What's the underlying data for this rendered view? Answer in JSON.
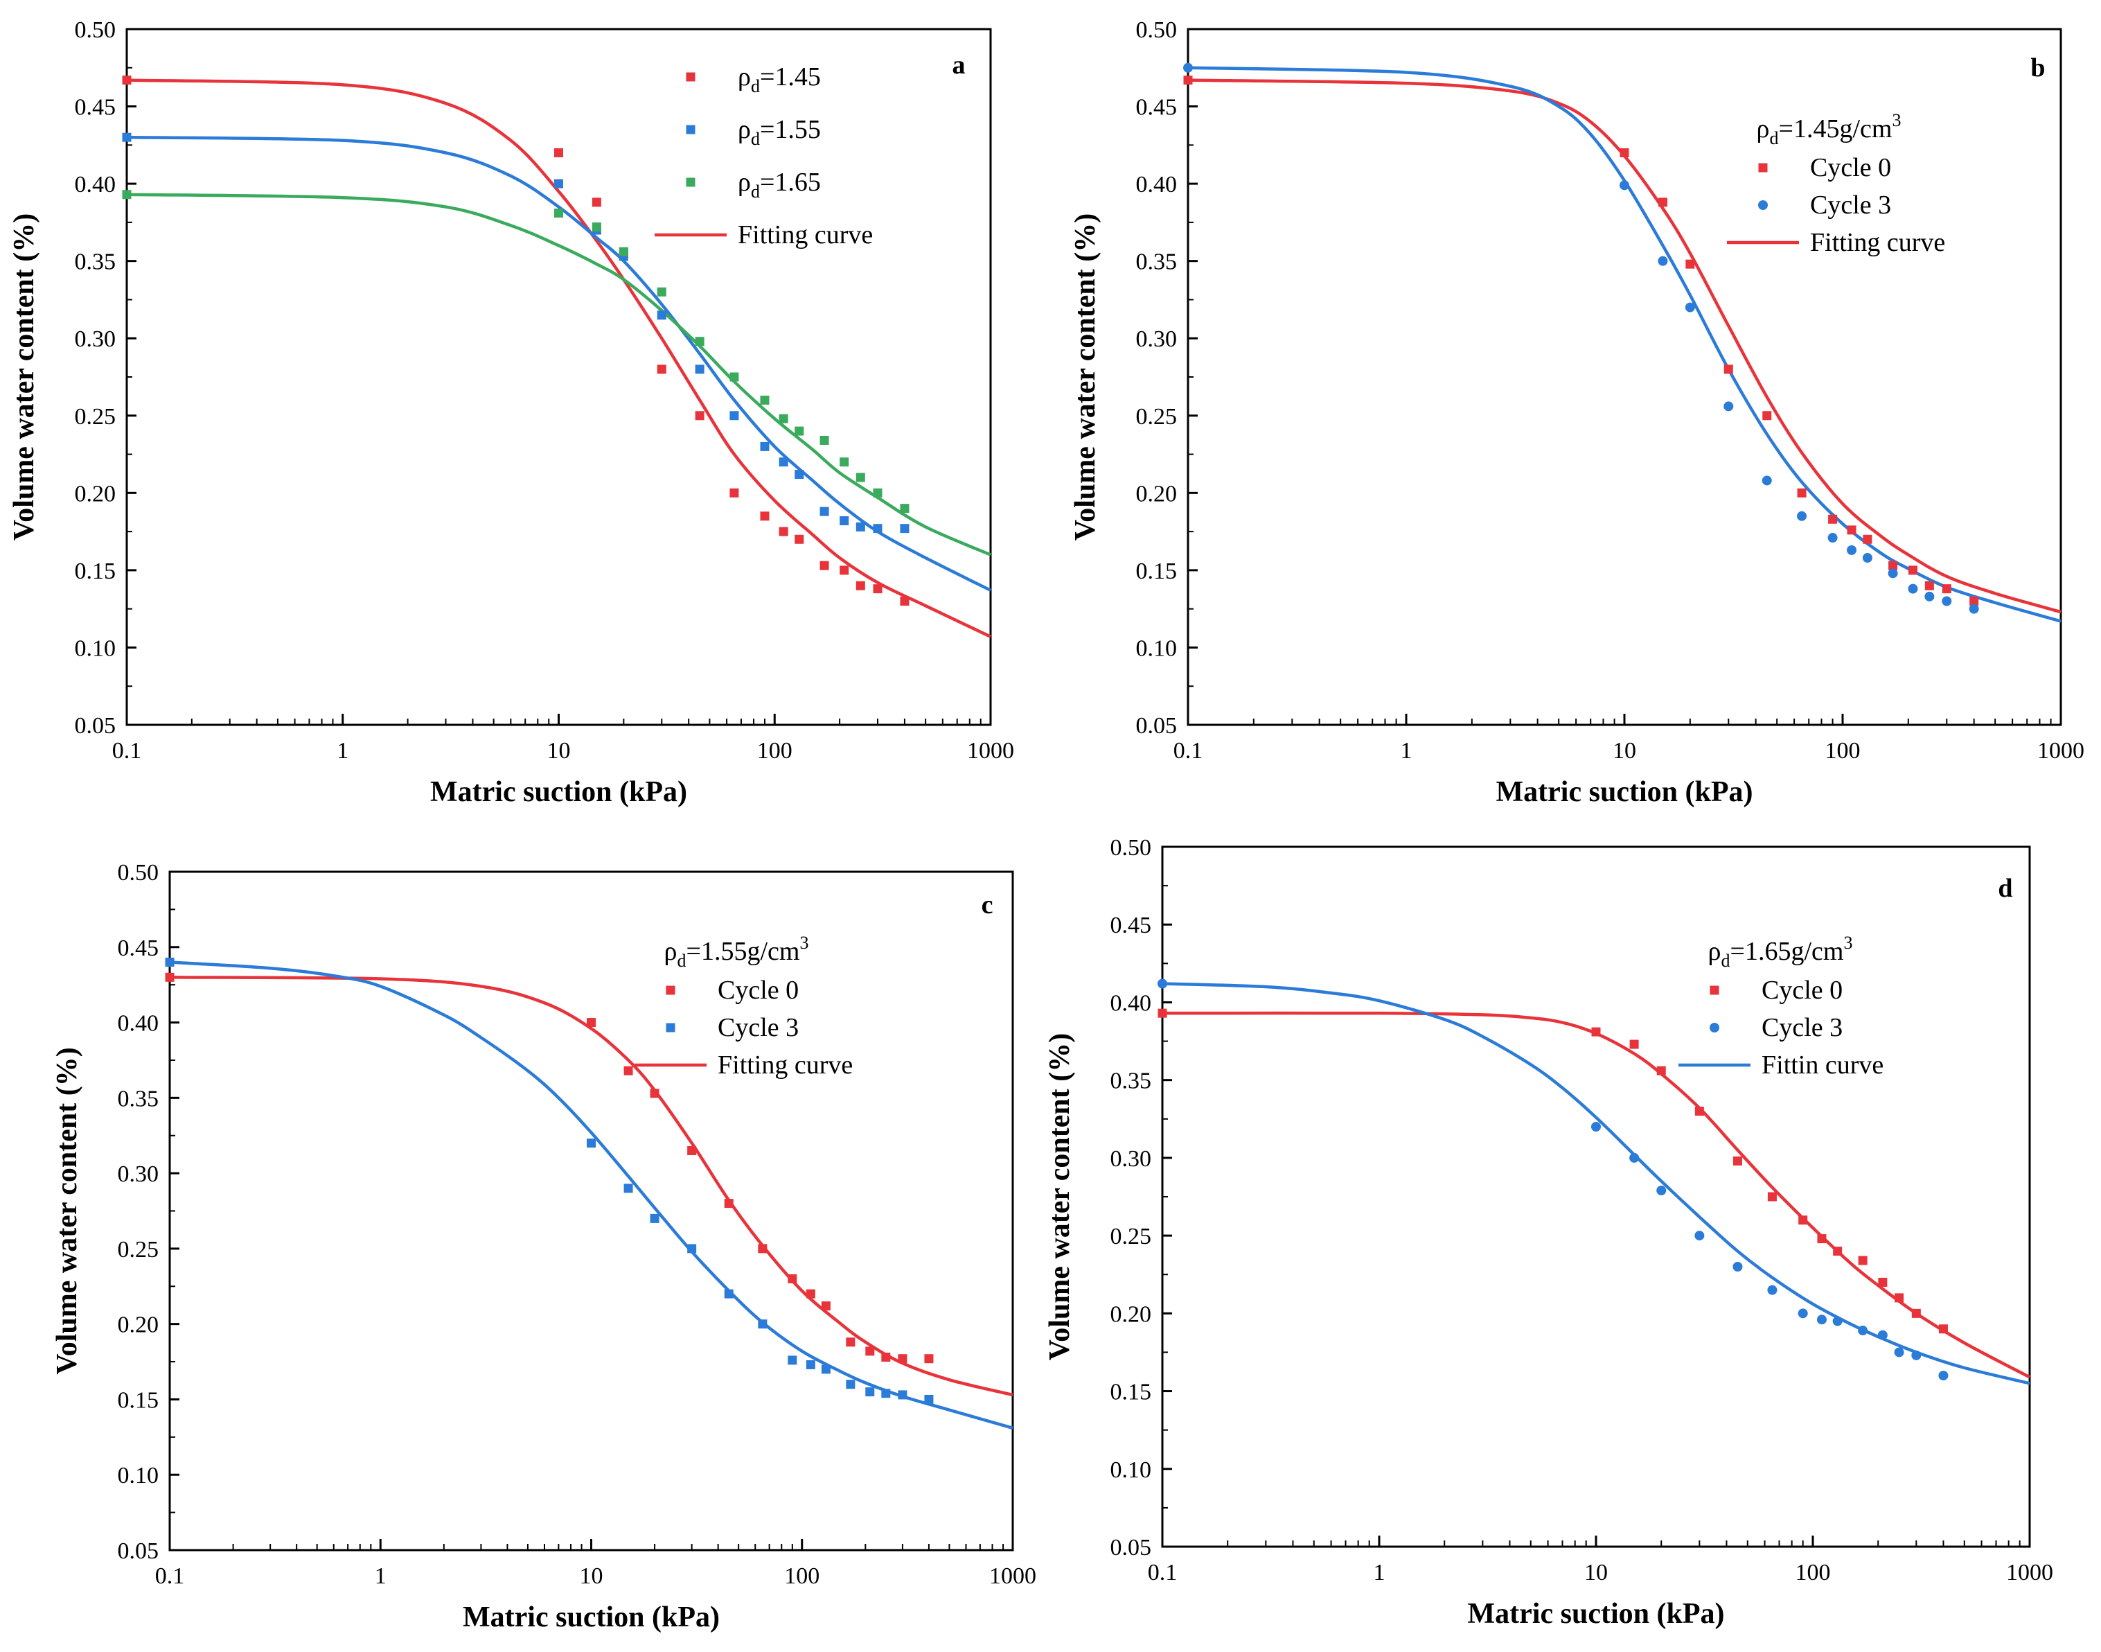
{
  "chart_data": [
    {
      "type": "scatter",
      "panel_label": "a",
      "xlabel": "Matric suction (kPa)",
      "ylabel": "Volume water content (%)",
      "xscale": "log",
      "xlim": [
        0.1,
        1000
      ],
      "ylim": [
        0.05,
        0.5
      ],
      "xticks": [
        0.1,
        1,
        10,
        100,
        1000
      ],
      "xtick_labels": [
        "0.1",
        "1",
        "10",
        "100",
        "1000"
      ],
      "yticks": [
        0.05,
        0.1,
        0.15,
        0.2,
        0.25,
        0.3,
        0.35,
        0.4,
        0.45,
        0.5
      ],
      "ytick_labels": [
        "0.05",
        "0.10",
        "0.15",
        "0.20",
        "0.25",
        "0.30",
        "0.35",
        "0.40",
        "0.45",
        "0.50"
      ],
      "legend_position": "top-right",
      "legend_title": null,
      "series": [
        {
          "name": "1.45",
          "legend_prefix": "ρ",
          "legend_sub": "d",
          "legend_eq": "=",
          "marker": "square",
          "color": "#e8333a",
          "x": [
            0.1,
            10,
            15,
            20,
            30,
            45,
            65,
            90,
            110,
            130,
            170,
            210,
            250,
            300,
            400
          ],
          "y": [
            0.467,
            0.42,
            0.388,
            0.355,
            0.28,
            0.25,
            0.2,
            0.185,
            0.175,
            0.17,
            0.153,
            0.15,
            0.14,
            0.138,
            0.13
          ]
        },
        {
          "name": "1.55",
          "legend_prefix": "ρ",
          "legend_sub": "d",
          "legend_eq": "=",
          "marker": "square",
          "color": "#2b7bd8",
          "x": [
            0.1,
            10,
            15,
            20,
            30,
            45,
            65,
            90,
            110,
            130,
            170,
            210,
            250,
            300,
            400
          ],
          "y": [
            0.43,
            0.4,
            0.37,
            0.353,
            0.315,
            0.28,
            0.25,
            0.23,
            0.22,
            0.212,
            0.188,
            0.182,
            0.178,
            0.177,
            0.177
          ]
        },
        {
          "name": "1.65",
          "legend_prefix": "ρ",
          "legend_sub": "d",
          "legend_eq": "=",
          "marker": "square",
          "color": "#3aaa5c",
          "x": [
            0.1,
            10,
            15,
            20,
            30,
            45,
            65,
            90,
            110,
            130,
            170,
            210,
            250,
            300,
            400
          ],
          "y": [
            0.393,
            0.381,
            0.372,
            0.356,
            0.33,
            0.298,
            0.275,
            0.26,
            0.248,
            0.24,
            0.234,
            0.22,
            0.21,
            0.2,
            0.19
          ]
        }
      ],
      "curves": [
        {
          "name": "Fitting curve",
          "color": "#e8333a",
          "in_legend": true,
          "x": [
            0.1,
            1,
            3,
            6,
            10,
            15,
            20,
            30,
            45,
            65,
            100,
            150,
            200,
            300,
            500,
            1000
          ],
          "y": [
            0.467,
            0.464,
            0.452,
            0.428,
            0.395,
            0.363,
            0.338,
            0.3,
            0.26,
            0.225,
            0.195,
            0.173,
            0.158,
            0.142,
            0.127,
            0.107
          ]
        },
        {
          "name": "ρd=1.55 fit",
          "color": "#2b7bd8",
          "in_legend": false,
          "x": [
            0.1,
            1,
            3,
            6,
            10,
            15,
            20,
            30,
            45,
            65,
            100,
            150,
            200,
            300,
            500,
            1000
          ],
          "y": [
            0.43,
            0.428,
            0.42,
            0.405,
            0.385,
            0.365,
            0.35,
            0.322,
            0.29,
            0.26,
            0.23,
            0.208,
            0.193,
            0.175,
            0.158,
            0.137
          ]
        },
        {
          "name": "ρd=1.65 fit",
          "color": "#3aaa5c",
          "in_legend": false,
          "x": [
            0.1,
            1,
            3,
            6,
            10,
            15,
            20,
            30,
            45,
            65,
            100,
            150,
            200,
            300,
            500,
            1000
          ],
          "y": [
            0.393,
            0.391,
            0.385,
            0.373,
            0.36,
            0.348,
            0.338,
            0.318,
            0.295,
            0.272,
            0.248,
            0.228,
            0.213,
            0.197,
            0.178,
            0.16
          ]
        }
      ],
      "legend": [
        {
          "kind": "marker",
          "series": 0,
          "text": "ρd=1.45"
        },
        {
          "kind": "marker",
          "series": 1,
          "text": "ρd=1.55"
        },
        {
          "kind": "marker",
          "series": 2,
          "text": "ρd=1.65"
        },
        {
          "kind": "line",
          "curve": 0,
          "text": "Fitting curve"
        }
      ]
    },
    {
      "type": "scatter",
      "panel_label": "b",
      "xlabel": "Matric suction (kPa)",
      "ylabel": "Volume water content (%)",
      "xscale": "log",
      "xlim": [
        0.1,
        1000
      ],
      "ylim": [
        0.05,
        0.5
      ],
      "xticks": [
        0.1,
        1,
        10,
        100,
        1000
      ],
      "xtick_labels": [
        "0.1",
        "1",
        "10",
        "100",
        "1000"
      ],
      "yticks": [
        0.05,
        0.1,
        0.15,
        0.2,
        0.25,
        0.3,
        0.35,
        0.4,
        0.45,
        0.5
      ],
      "ytick_labels": [
        "0.05",
        "0.10",
        "0.15",
        "0.20",
        "0.25",
        "0.30",
        "0.35",
        "0.40",
        "0.45",
        "0.50"
      ],
      "legend_position": "top-right",
      "legend_title": {
        "prefix": "ρ",
        "sub": "d",
        "body": "=1.45g/cm",
        "sup": "3"
      },
      "series": [
        {
          "name": "Cycle 0",
          "marker": "square",
          "color": "#e8333a",
          "x": [
            0.1,
            10,
            15,
            20,
            30,
            45,
            65,
            90,
            110,
            130,
            170,
            210,
            250,
            300,
            400
          ],
          "y": [
            0.467,
            0.42,
            0.388,
            0.348,
            0.28,
            0.25,
            0.2,
            0.183,
            0.176,
            0.17,
            0.153,
            0.15,
            0.14,
            0.138,
            0.13
          ]
        },
        {
          "name": "Cycle 3",
          "marker": "circle",
          "color": "#2b7bd8",
          "x": [
            0.1,
            10,
            15,
            20,
            30,
            45,
            65,
            90,
            110,
            130,
            170,
            210,
            250,
            300,
            400
          ],
          "y": [
            0.475,
            0.399,
            0.35,
            0.32,
            0.256,
            0.208,
            0.185,
            0.171,
            0.163,
            0.158,
            0.148,
            0.138,
            0.133,
            0.13,
            0.125
          ]
        }
      ],
      "curves": [
        {
          "name": "Fitting curve",
          "color": "#e8333a",
          "in_legend": true,
          "x": [
            0.1,
            1,
            3,
            5,
            7,
            10,
            15,
            20,
            30,
            45,
            65,
            100,
            150,
            200,
            300,
            500,
            1000
          ],
          "y": [
            0.467,
            0.465,
            0.46,
            0.452,
            0.44,
            0.418,
            0.384,
            0.355,
            0.308,
            0.262,
            0.226,
            0.193,
            0.172,
            0.16,
            0.146,
            0.135,
            0.123
          ]
        },
        {
          "name": "Cycle 3 fit",
          "color": "#2b7bd8",
          "in_legend": false,
          "x": [
            0.1,
            1,
            3,
            5,
            7,
            10,
            15,
            20,
            30,
            45,
            65,
            100,
            150,
            200,
            300,
            500,
            1000
          ],
          "y": [
            0.475,
            0.472,
            0.463,
            0.45,
            0.432,
            0.402,
            0.36,
            0.328,
            0.28,
            0.238,
            0.207,
            0.18,
            0.161,
            0.151,
            0.139,
            0.129,
            0.117
          ]
        }
      ],
      "legend": [
        {
          "kind": "marker",
          "series": 0,
          "text": "Cycle 0"
        },
        {
          "kind": "marker",
          "series": 1,
          "text": "Cycle 3"
        },
        {
          "kind": "line",
          "curve": 0,
          "text": "Fitting curve"
        }
      ]
    },
    {
      "type": "scatter",
      "panel_label": "c",
      "xlabel": "Matric suction (kPa)",
      "ylabel": "Volume water content (%)",
      "xscale": "log",
      "xlim": [
        0.1,
        1000
      ],
      "ylim": [
        0.05,
        0.5
      ],
      "xticks": [
        0.1,
        1,
        10,
        100,
        1000
      ],
      "xtick_labels": [
        "0.1",
        "1",
        "10",
        "100",
        "1000"
      ],
      "yticks": [
        0.05,
        0.1,
        0.15,
        0.2,
        0.25,
        0.3,
        0.35,
        0.4,
        0.45,
        0.5
      ],
      "ytick_labels": [
        "0.05",
        "0.10",
        "0.15",
        "0.20",
        "0.25",
        "0.30",
        "0.35",
        "0.40",
        "0.45",
        "0.50"
      ],
      "legend_position": "top-right",
      "legend_title": {
        "prefix": "ρ",
        "sub": "d",
        "body": "=1.55g/cm",
        "sup": "3"
      },
      "series": [
        {
          "name": "Cycle 0",
          "marker": "square",
          "color": "#e8333a",
          "x": [
            0.1,
            10,
            15,
            20,
            30,
            45,
            65,
            90,
            110,
            130,
            170,
            210,
            250,
            300,
            400
          ],
          "y": [
            0.43,
            0.4,
            0.368,
            0.353,
            0.315,
            0.28,
            0.25,
            0.23,
            0.22,
            0.212,
            0.188,
            0.182,
            0.178,
            0.177,
            0.177
          ]
        },
        {
          "name": "Cycle 3",
          "marker": "square",
          "color": "#2b7bd8",
          "x": [
            0.1,
            10,
            15,
            20,
            30,
            45,
            65,
            90,
            110,
            130,
            170,
            210,
            250,
            300,
            400
          ],
          "y": [
            0.44,
            0.32,
            0.29,
            0.27,
            0.25,
            0.22,
            0.2,
            0.176,
            0.173,
            0.17,
            0.16,
            0.155,
            0.154,
            0.153,
            0.15
          ]
        }
      ],
      "curves": [
        {
          "name": "Fitting curve",
          "color": "#e8333a",
          "in_legend": true,
          "x": [
            0.1,
            1,
            3,
            6,
            10,
            15,
            20,
            30,
            45,
            65,
            100,
            150,
            200,
            300,
            500,
            1000
          ],
          "y": [
            0.43,
            0.429,
            0.424,
            0.413,
            0.396,
            0.375,
            0.355,
            0.32,
            0.282,
            0.252,
            0.222,
            0.201,
            0.188,
            0.174,
            0.163,
            0.153
          ]
        },
        {
          "name": "Cycle 3 fit",
          "color": "#2b7bd8",
          "in_legend": false,
          "x": [
            0.1,
            0.3,
            0.6,
            1,
            2,
            3,
            5,
            7,
            10,
            15,
            20,
            30,
            45,
            65,
            100,
            150,
            200,
            300,
            500,
            1000
          ],
          "y": [
            0.44,
            0.436,
            0.431,
            0.424,
            0.405,
            0.39,
            0.368,
            0.35,
            0.327,
            0.298,
            0.277,
            0.248,
            0.222,
            0.201,
            0.182,
            0.169,
            0.161,
            0.152,
            0.143,
            0.131
          ]
        }
      ],
      "legend": [
        {
          "kind": "marker",
          "series": 0,
          "text": "Cycle 0"
        },
        {
          "kind": "marker",
          "series": 1,
          "text": "Cycle 3"
        },
        {
          "kind": "line",
          "curve": 0,
          "text": "Fitting curve"
        }
      ]
    },
    {
      "type": "scatter",
      "panel_label": "d",
      "xlabel": "Matric suction (kPa)",
      "ylabel": "Volume water content (%)",
      "xscale": "log",
      "xlim": [
        0.1,
        1000
      ],
      "ylim": [
        0.05,
        0.5
      ],
      "xticks": [
        0.1,
        1,
        10,
        100,
        1000
      ],
      "xtick_labels": [
        "0.1",
        "1",
        "10",
        "100",
        "1000"
      ],
      "yticks": [
        0.05,
        0.1,
        0.15,
        0.2,
        0.25,
        0.3,
        0.35,
        0.4,
        0.45,
        0.5
      ],
      "ytick_labels": [
        "0.05",
        "0.10",
        "0.15",
        "0.20",
        "0.25",
        "0.30",
        "0.35",
        "0.40",
        "0.45",
        "0.50"
      ],
      "legend_position": "top-right",
      "legend_title": {
        "prefix": "ρ",
        "sub": "d",
        "body": "=1.65g/cm",
        "sup": "3"
      },
      "series": [
        {
          "name": "Cycle 0",
          "marker": "square",
          "color": "#e8333a",
          "x": [
            0.1,
            10,
            15,
            20,
            30,
            45,
            65,
            90,
            110,
            130,
            170,
            210,
            250,
            300,
            400
          ],
          "y": [
            0.393,
            0.381,
            0.373,
            0.356,
            0.33,
            0.298,
            0.275,
            0.26,
            0.248,
            0.24,
            0.234,
            0.22,
            0.21,
            0.2,
            0.19
          ]
        },
        {
          "name": "Cycle 3",
          "marker": "circle",
          "color": "#2b7bd8",
          "x": [
            0.1,
            10,
            15,
            20,
            30,
            45,
            65,
            90,
            110,
            130,
            170,
            210,
            250,
            300,
            400
          ],
          "y": [
            0.412,
            0.32,
            0.3,
            0.279,
            0.25,
            0.23,
            0.215,
            0.2,
            0.196,
            0.195,
            0.189,
            0.186,
            0.175,
            0.173,
            0.16
          ]
        }
      ],
      "curves": [
        {
          "name": "Cycle 0 fit",
          "color": "#e8333a",
          "in_legend": false,
          "x": [
            0.1,
            1,
            3,
            5,
            7,
            10,
            15,
            20,
            30,
            45,
            65,
            100,
            150,
            200,
            300,
            500,
            1000
          ],
          "y": [
            0.393,
            0.393,
            0.392,
            0.39,
            0.387,
            0.38,
            0.367,
            0.354,
            0.332,
            0.305,
            0.281,
            0.255,
            0.232,
            0.218,
            0.2,
            0.181,
            0.159
          ]
        },
        {
          "name": "Fittin curve",
          "color": "#2b7bd8",
          "in_legend": true,
          "x": [
            0.1,
            0.3,
            0.6,
            1,
            2,
            3,
            5,
            7,
            10,
            15,
            20,
            30,
            45,
            65,
            100,
            150,
            200,
            300,
            500,
            1000
          ],
          "y": [
            0.412,
            0.41,
            0.406,
            0.401,
            0.389,
            0.378,
            0.36,
            0.345,
            0.326,
            0.302,
            0.285,
            0.262,
            0.24,
            0.223,
            0.206,
            0.193,
            0.185,
            0.175,
            0.165,
            0.155
          ]
        }
      ],
      "legend": [
        {
          "kind": "marker",
          "series": 0,
          "text": "Cycle 0"
        },
        {
          "kind": "marker",
          "series": 1,
          "text": "Cycle 3"
        },
        {
          "kind": "line",
          "curve": 1,
          "text": "Fittin curve"
        }
      ]
    }
  ]
}
